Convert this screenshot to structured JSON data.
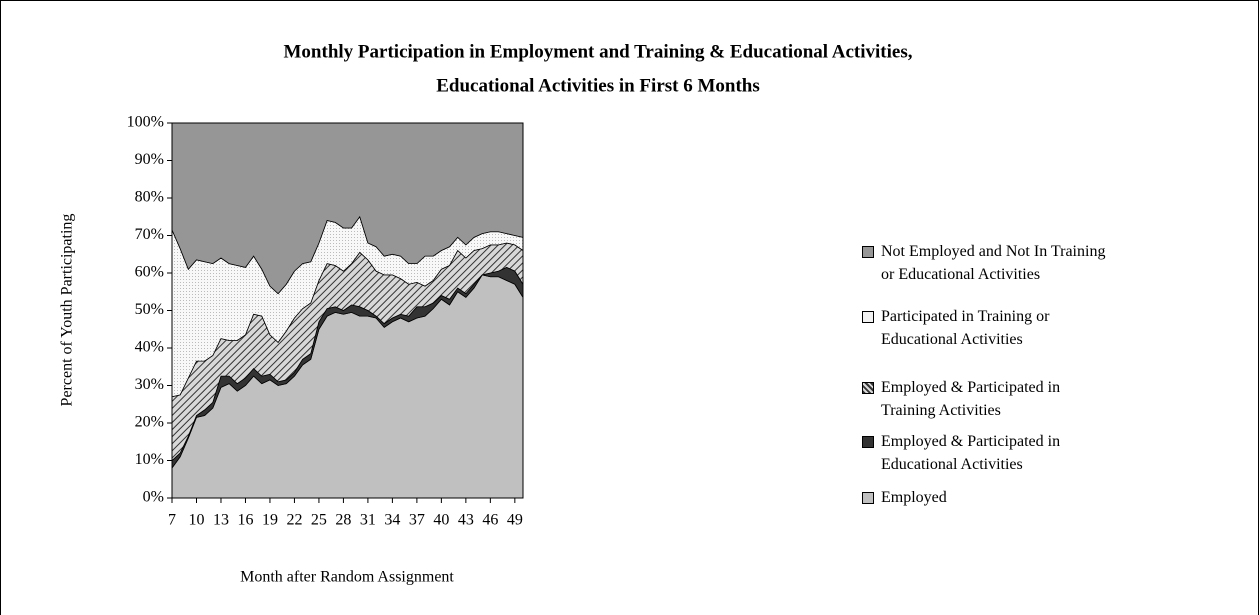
{
  "chart_data": {
    "type": "stacked-area",
    "title": "Monthly Participation in Employment and Training & Educational Activities,",
    "subtitle": "Educational Activities in First 6 Months",
    "x_label": "Month after Random Assignment",
    "y_label": "Percent of Youth Participating",
    "x": [
      7,
      8,
      9,
      10,
      11,
      12,
      13,
      14,
      15,
      16,
      17,
      18,
      19,
      20,
      21,
      22,
      23,
      24,
      25,
      26,
      27,
      28,
      29,
      30,
      31,
      32,
      33,
      34,
      35,
      36,
      37,
      38,
      39,
      40,
      41,
      42,
      43,
      44,
      45,
      46,
      47,
      48,
      49,
      50
    ],
    "xlim": [
      7,
      50
    ],
    "xticks": [
      7,
      10,
      13,
      16,
      19,
      22,
      25,
      28,
      31,
      34,
      37,
      40,
      43,
      46,
      49
    ],
    "ylim": [
      0,
      100
    ],
    "yticks": [
      {
        "value": 0,
        "label": "0%"
      },
      {
        "value": 10,
        "label": "10%"
      },
      {
        "value": 20,
        "label": "20%"
      },
      {
        "value": 30,
        "label": "30%"
      },
      {
        "value": 40,
        "label": "40%"
      },
      {
        "value": 50,
        "label": "50%"
      },
      {
        "value": 60,
        "label": "60%"
      },
      {
        "value": 70,
        "label": "70%"
      },
      {
        "value": 80,
        "label": "80%"
      },
      {
        "value": 90,
        "label": "90%"
      },
      {
        "value": 100,
        "label": "100%"
      }
    ],
    "legend": "right",
    "series": [
      {
        "name": "Employed",
        "color": "#c0c0c0",
        "pattern": "solid",
        "values": [
          8,
          11,
          16,
          21.5,
          22,
          24,
          29.5,
          30.5,
          28.5,
          30,
          32.5,
          30.5,
          31.5,
          30,
          30.5,
          32.5,
          35.5,
          37,
          45,
          48.5,
          49.5,
          49,
          49.5,
          48.5,
          48.5,
          48,
          45.5,
          47,
          48,
          47,
          48,
          48.5,
          50.5,
          53,
          51.5,
          55,
          53.5,
          56,
          59.5,
          59,
          59,
          58,
          57,
          53.5
        ]
      },
      {
        "name": "Employed & Participated in Educational Activities",
        "color": "#333333",
        "pattern": "solid",
        "values": [
          2,
          1,
          0.5,
          0.5,
          1.5,
          1.5,
          3,
          2,
          2,
          2,
          2,
          2,
          1.5,
          1,
          1,
          1,
          1.5,
          1.5,
          2,
          2,
          1.5,
          1,
          2,
          2.5,
          1.5,
          0.5,
          1,
          1,
          1,
          1.5,
          3,
          2.5,
          1.5,
          1,
          1.5,
          1,
          1,
          1,
          0,
          1,
          1.5,
          3.5,
          3.5,
          3.5
        ]
      },
      {
        "name": "Employed & Participated in Training Activities",
        "color": "#555555",
        "pattern": "hatch",
        "values": [
          17,
          15.5,
          15.5,
          14.5,
          13,
          12.5,
          10,
          9.5,
          11.5,
          11.5,
          14.5,
          16,
          10.5,
          10.5,
          13,
          14.5,
          13.5,
          13.5,
          11,
          12,
          11,
          10.5,
          11,
          14.5,
          13.5,
          12,
          13,
          11.5,
          9.5,
          8.5,
          6.5,
          5.5,
          6,
          7,
          9,
          10,
          9.5,
          9,
          7,
          7.5,
          7,
          6.5,
          7,
          9
        ]
      },
      {
        "name": "Participated in Training or Educational Activities",
        "color": "#f2f2f2",
        "pattern": "dots",
        "values": [
          44.5,
          39,
          29,
          27,
          26.5,
          24.5,
          21.5,
          20.5,
          20,
          18,
          15.5,
          12.5,
          13,
          13,
          12.5,
          12.5,
          12,
          11,
          10,
          11.5,
          11.5,
          11.5,
          9.5,
          9.5,
          4.5,
          6.5,
          5,
          5.5,
          6,
          5.5,
          5,
          8,
          6.5,
          5,
          5,
          3.5,
          3.5,
          3.5,
          4,
          3.5,
          3.5,
          2.5,
          2.5,
          3.5
        ]
      },
      {
        "name": "Not Employed and Not In Training or Educational Activities",
        "color": "#969696",
        "pattern": "solid",
        "values": [
          28.5,
          33.5,
          39,
          36.5,
          37,
          37.5,
          36,
          37.5,
          38,
          38.5,
          35.5,
          39,
          43.5,
          45.5,
          43,
          39.5,
          37.5,
          37,
          32,
          26,
          26.5,
          28,
          28,
          25,
          32,
          33,
          35.5,
          35,
          35.5,
          37.5,
          37.5,
          35.5,
          35.5,
          34,
          33,
          30.5,
          32.5,
          30.5,
          29.5,
          29,
          29,
          29.5,
          30,
          30.5
        ]
      }
    ]
  }
}
